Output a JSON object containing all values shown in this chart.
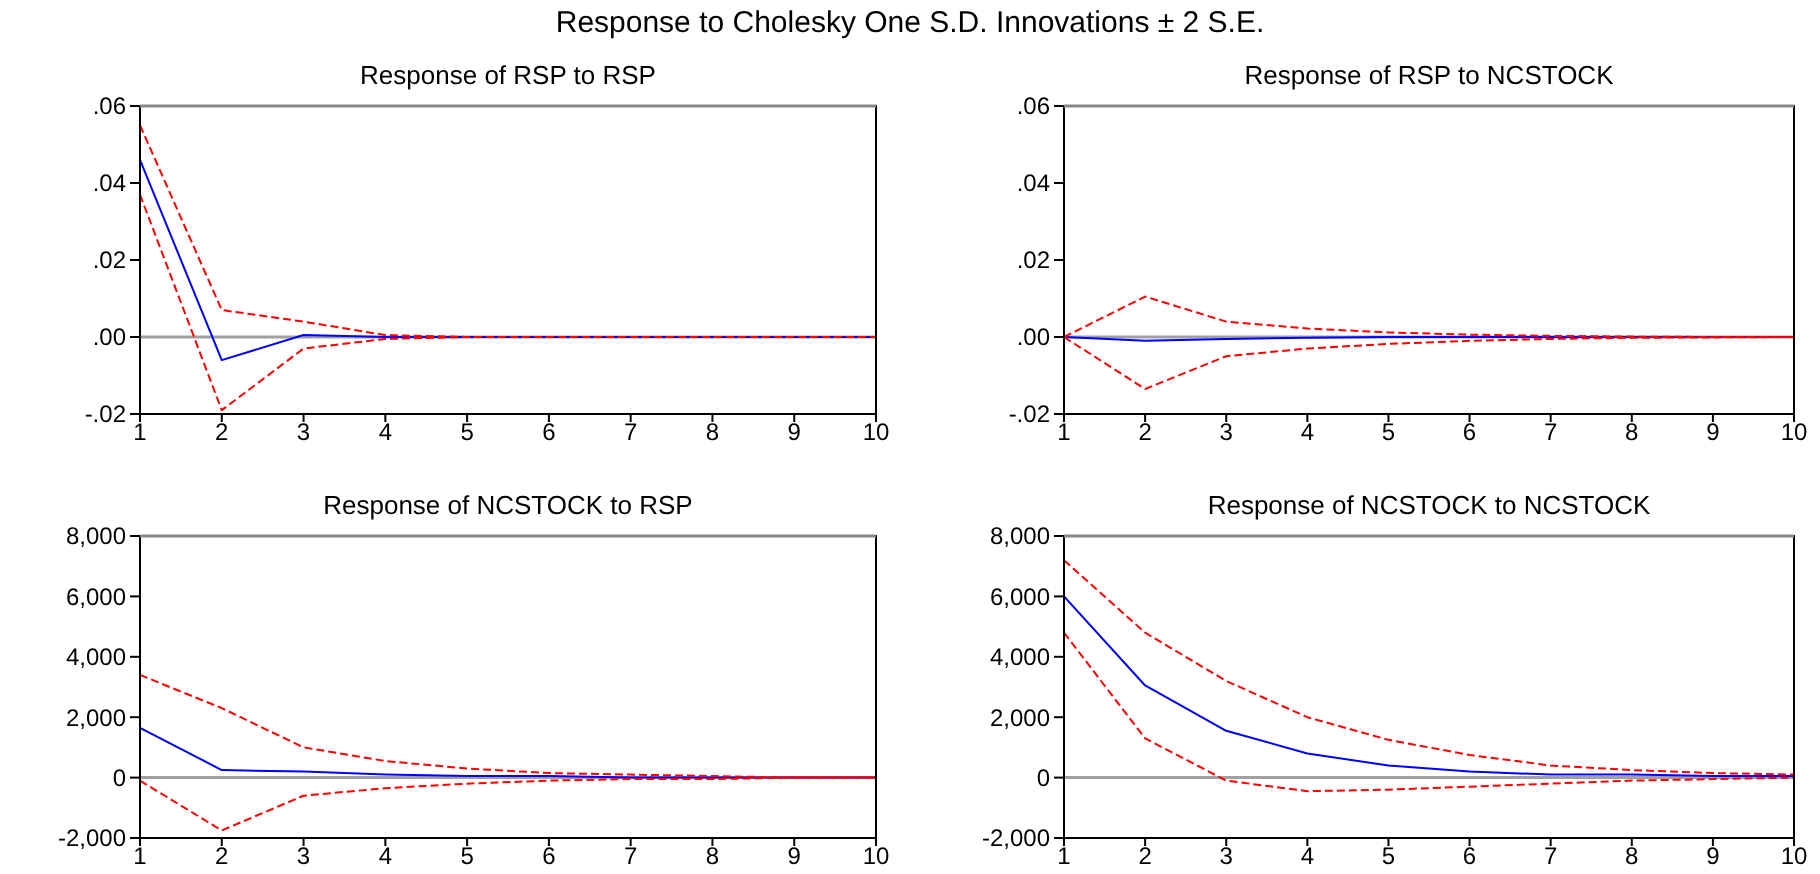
{
  "chart_data": [
    {
      "type": "line",
      "title": "Response of RSP to RSP",
      "annotations": [
        "Response to Cholesky One S.D. Innovations ± 2 S.E."
      ],
      "x": [
        1,
        2,
        3,
        4,
        5,
        6,
        7,
        8,
        9,
        10
      ],
      "xlim": [
        1,
        10
      ],
      "xticks": [
        1,
        2,
        3,
        4,
        5,
        6,
        7,
        8,
        9,
        10
      ],
      "ylim": [
        -0.02,
        0.06
      ],
      "yticks": [
        {
          "value": -0.02,
          "label": "-.02"
        },
        {
          "value": 0,
          "label": ".00"
        },
        {
          "value": 0.02,
          "label": ".02"
        },
        {
          "value": 0.04,
          "label": ".04"
        },
        {
          "value": 0.06,
          "label": ".06"
        }
      ],
      "ref_lines": [
        {
          "axis": "y",
          "value": 0,
          "color": "#a0a0a0"
        }
      ],
      "series": [
        {
          "color": "#0000ff",
          "line_style": "solid",
          "values": [
            0.046,
            -0.006,
            0.0005,
            0,
            0,
            0,
            0,
            0,
            0,
            0
          ]
        },
        {
          "color": "#ff0000",
          "line_style": "dashed",
          "values": [
            0.055,
            0.007,
            0.004,
            0.0005,
            0,
            0,
            0,
            0,
            0,
            0
          ]
        },
        {
          "color": "#ff0000",
          "line_style": "dashed",
          "values": [
            0.037,
            -0.019,
            -0.003,
            -0.0005,
            0,
            0,
            0,
            0,
            0,
            0
          ]
        }
      ]
    },
    {
      "type": "line",
      "title": "Response of RSP to NCSTOCK",
      "x": [
        1,
        2,
        3,
        4,
        5,
        6,
        7,
        8,
        9,
        10
      ],
      "xlim": [
        1,
        10
      ],
      "xticks": [
        1,
        2,
        3,
        4,
        5,
        6,
        7,
        8,
        9,
        10
      ],
      "ylim": [
        -0.02,
        0.06
      ],
      "yticks": [
        {
          "value": -0.02,
          "label": "-.02"
        },
        {
          "value": 0,
          "label": ".00"
        },
        {
          "value": 0.02,
          "label": ".02"
        },
        {
          "value": 0.04,
          "label": ".04"
        },
        {
          "value": 0.06,
          "label": ".06"
        }
      ],
      "ref_lines": [
        {
          "axis": "y",
          "value": 0,
          "color": "#a0a0a0"
        }
      ],
      "series": [
        {
          "color": "#0000ff",
          "line_style": "solid",
          "values": [
            0,
            -0.001,
            -0.0005,
            -0.0002,
            0,
            0,
            0,
            0,
            0,
            0
          ]
        },
        {
          "color": "#ff0000",
          "line_style": "dashed",
          "values": [
            0,
            0.0105,
            0.004,
            0.0022,
            0.0012,
            0.0006,
            0.0003,
            0.0001,
            0,
            0
          ]
        },
        {
          "color": "#ff0000",
          "line_style": "dashed",
          "values": [
            0,
            -0.0135,
            -0.005,
            -0.003,
            -0.0018,
            -0.001,
            -0.0005,
            -0.0002,
            -0.0001,
            0
          ]
        }
      ]
    },
    {
      "type": "line",
      "title": "Response of NCSTOCK to RSP",
      "x": [
        1,
        2,
        3,
        4,
        5,
        6,
        7,
        8,
        9,
        10
      ],
      "xlim": [
        1,
        10
      ],
      "xticks": [
        1,
        2,
        3,
        4,
        5,
        6,
        7,
        8,
        9,
        10
      ],
      "ylim": [
        -2000,
        8000
      ],
      "yticks": [
        {
          "value": -2000,
          "label": "-2,000"
        },
        0,
        {
          "value": 2000,
          "label": "2,000"
        },
        {
          "value": 4000,
          "label": "4,000"
        },
        {
          "value": 6000,
          "label": "6,000"
        },
        {
          "value": 8000,
          "label": "8,000"
        }
      ],
      "ref_lines": [
        {
          "axis": "y",
          "value": 0,
          "color": "#a0a0a0"
        }
      ],
      "series": [
        {
          "color": "#0000ff",
          "line_style": "solid",
          "values": [
            1650,
            250,
            200,
            100,
            50,
            50,
            0,
            0,
            0,
            0
          ]
        },
        {
          "color": "#ff0000",
          "line_style": "dashed",
          "values": [
            3400,
            2300,
            1000,
            550,
            300,
            150,
            100,
            50,
            0,
            0
          ]
        },
        {
          "color": "#ff0000",
          "line_style": "dashed",
          "values": [
            -100,
            -1750,
            -600,
            -350,
            -200,
            -100,
            -50,
            -50,
            0,
            0
          ]
        }
      ]
    },
    {
      "type": "line",
      "title": "Response of NCSTOCK to NCSTOCK",
      "x": [
        1,
        2,
        3,
        4,
        5,
        6,
        7,
        8,
        9,
        10
      ],
      "xlim": [
        1,
        10
      ],
      "xticks": [
        1,
        2,
        3,
        4,
        5,
        6,
        7,
        8,
        9,
        10
      ],
      "ylim": [
        -2000,
        8000
      ],
      "yticks": [
        {
          "value": -2000,
          "label": "-2,000"
        },
        0,
        {
          "value": 2000,
          "label": "2,000"
        },
        {
          "value": 4000,
          "label": "4,000"
        },
        {
          "value": 6000,
          "label": "6,000"
        },
        {
          "value": 8000,
          "label": "8,000"
        }
      ],
      "ref_lines": [
        {
          "axis": "y",
          "value": 0,
          "color": "#a0a0a0"
        }
      ],
      "series": [
        {
          "color": "#0000ff",
          "line_style": "solid",
          "values": [
            6000,
            3050,
            1550,
            800,
            400,
            200,
            100,
            100,
            50,
            50
          ]
        },
        {
          "color": "#ff0000",
          "line_style": "dashed",
          "values": [
            7200,
            4800,
            3200,
            2000,
            1250,
            750,
            400,
            250,
            150,
            100
          ]
        },
        {
          "color": "#ff0000",
          "line_style": "dashed",
          "values": [
            4800,
            1300,
            -100,
            -450,
            -400,
            -300,
            -200,
            -100,
            -50,
            0
          ]
        }
      ]
    }
  ]
}
